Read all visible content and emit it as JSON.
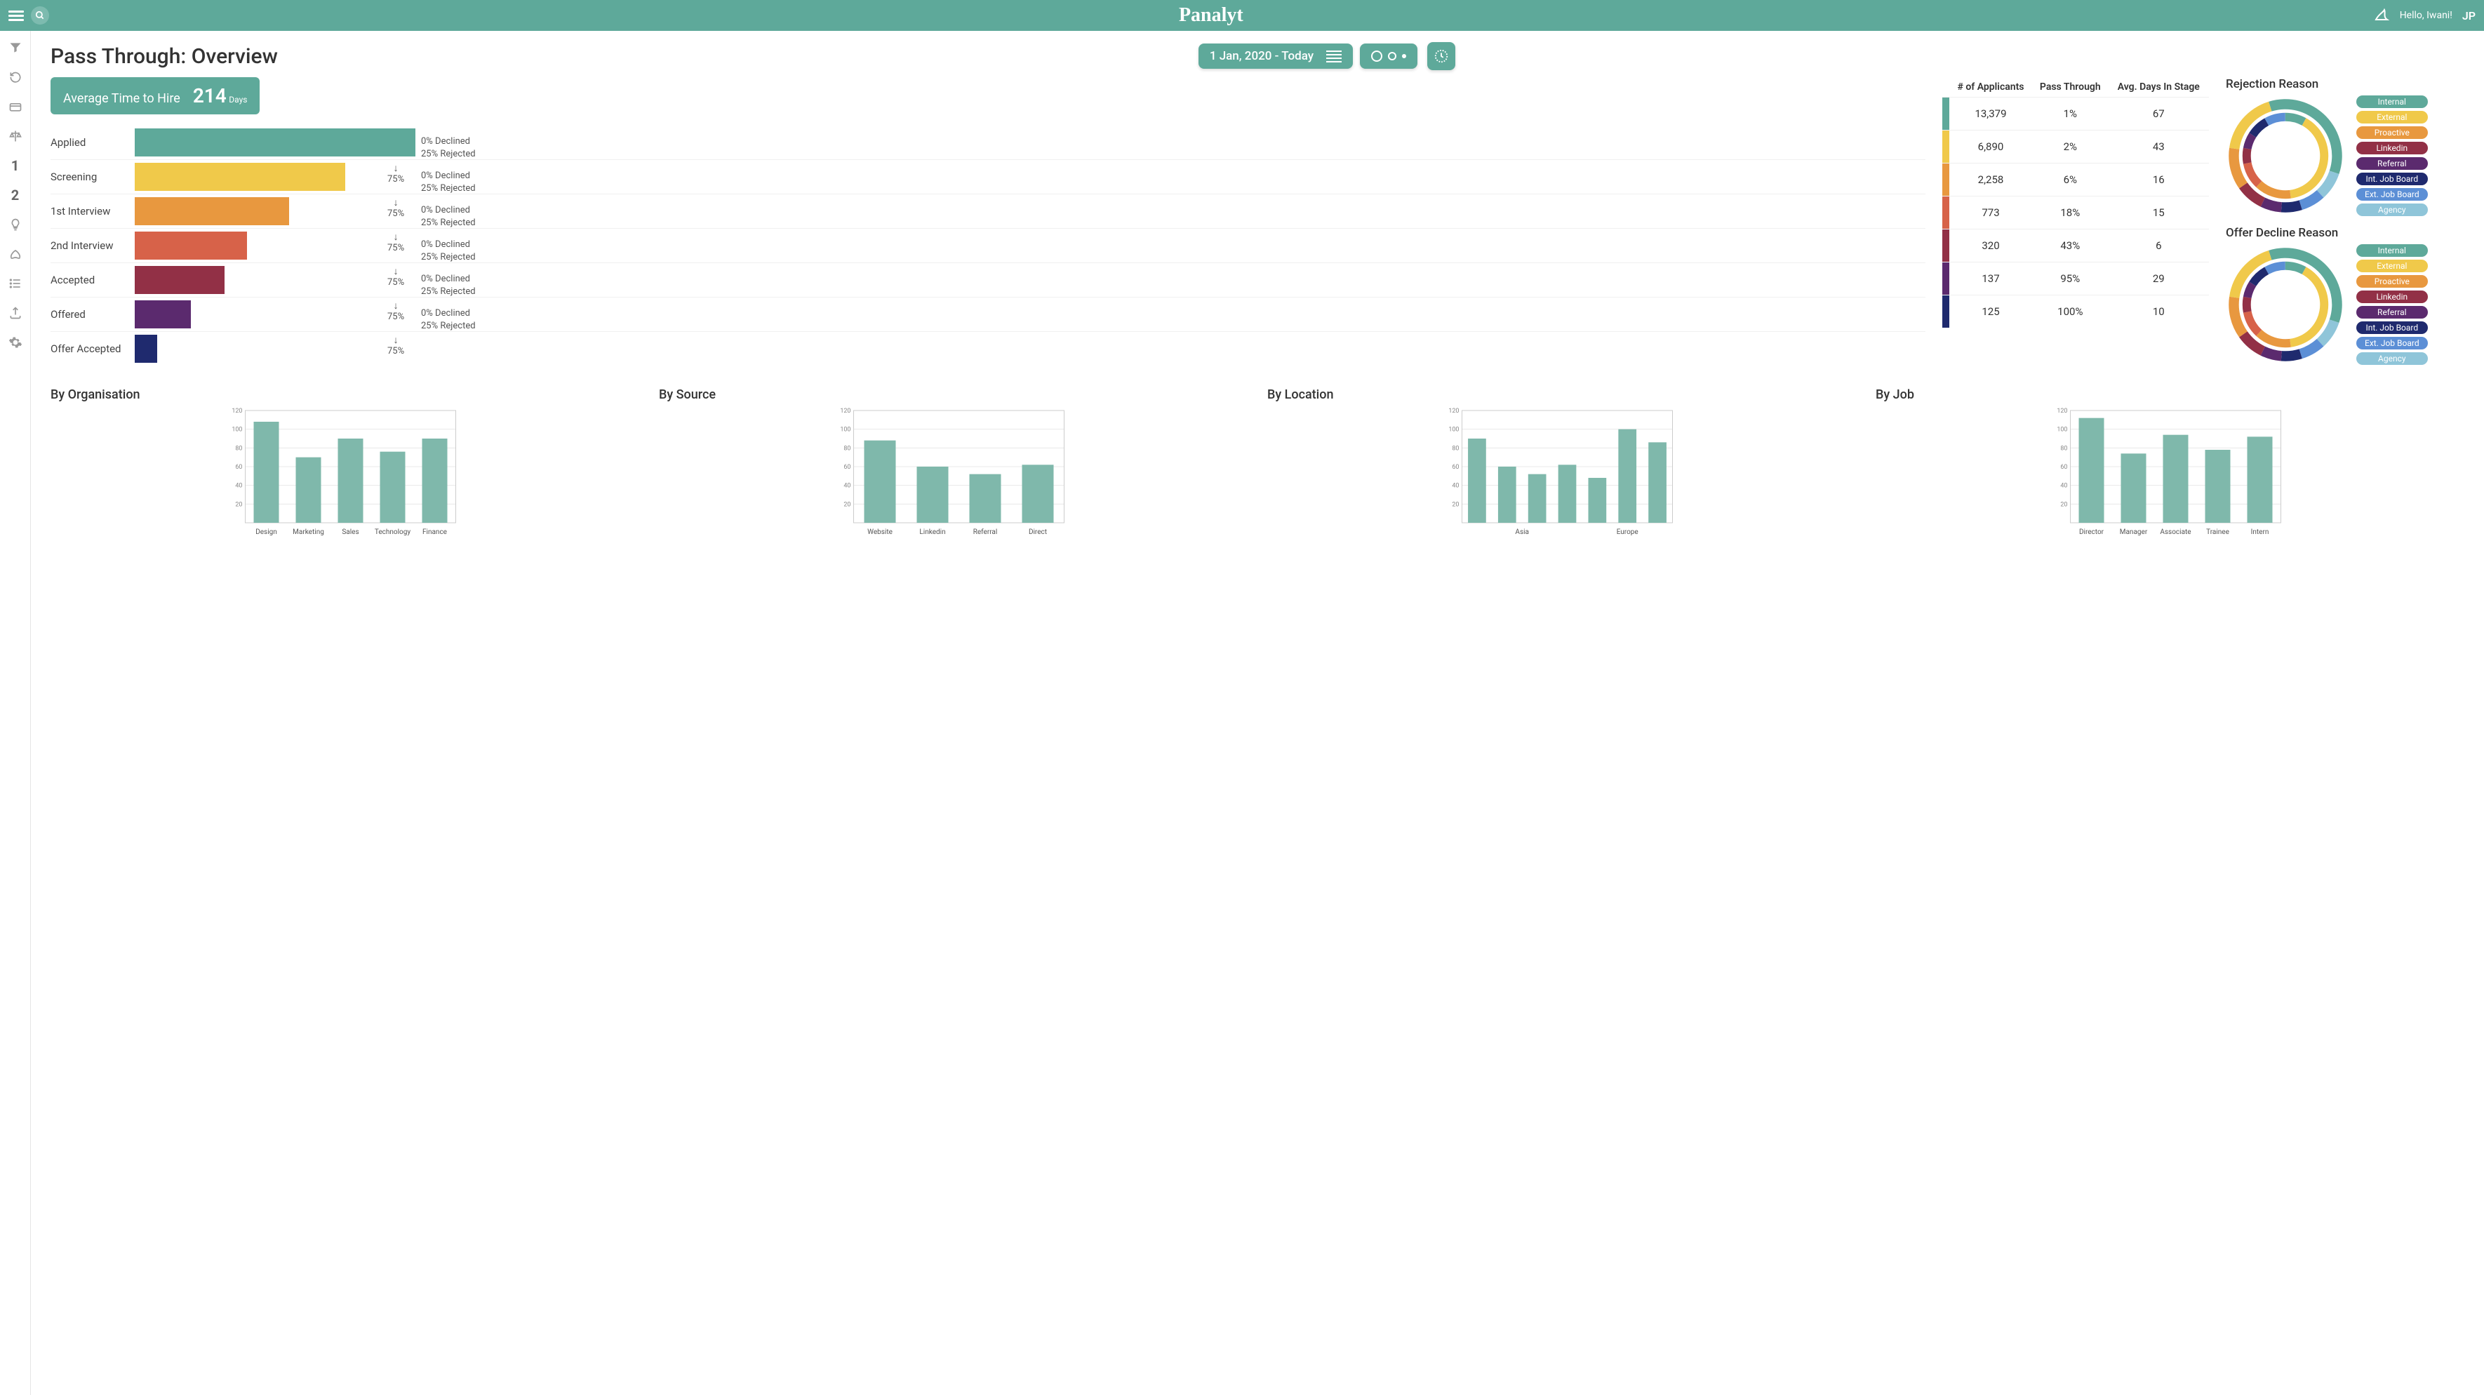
{
  "brand": "Panalyt",
  "greeting": "Hello, Iwani!",
  "user_initials": "JP",
  "page_title": "Pass Through: Overview",
  "date_range": "1 Jan, 2020 - Today",
  "sidebar_items": [
    "filter",
    "refresh",
    "card",
    "balance",
    "num1",
    "num2",
    "bulb",
    "rocket",
    "list",
    "upload",
    "gear"
  ],
  "metric": {
    "label": "Average Time to Hire",
    "value": "214",
    "unit": "Days"
  },
  "colors": {
    "accent": "#5ea99a",
    "stages": [
      "#5ea99a",
      "#f0c94a",
      "#e8983f",
      "#d76249",
      "#923046",
      "#5b2a6e",
      "#1f2a6e"
    ],
    "legend": [
      "#5ea99a",
      "#f0c94a",
      "#e8983f",
      "#923046",
      "#5b2a6e",
      "#1f2a6e",
      "#5c8fd6",
      "#8fc5d9"
    ]
  },
  "funnel": {
    "max_width_pct": 100,
    "stages": [
      {
        "label": "Applied",
        "width": 100,
        "pass": "75%",
        "declined": "0% Declined",
        "rejected": "25% Rejected"
      },
      {
        "label": "Screening",
        "width": 75,
        "pass": "75%",
        "declined": "0% Declined",
        "rejected": "25% Rejected"
      },
      {
        "label": "1st Interview",
        "width": 55,
        "pass": "75%",
        "declined": "0% Declined",
        "rejected": "25% Rejected"
      },
      {
        "label": "2nd Interview",
        "width": 40,
        "pass": "75%",
        "declined": "0% Declined",
        "rejected": "25% Rejected"
      },
      {
        "label": "Accepted",
        "width": 32,
        "pass": "75%",
        "declined": "0% Declined",
        "rejected": "25% Rejected"
      },
      {
        "label": "Offered",
        "width": 20,
        "pass": "75%",
        "declined": "0% Declined",
        "rejected": "25% Rejected"
      },
      {
        "label": "Offer Accepted",
        "width": 8,
        "pass": "",
        "declined": "",
        "rejected": ""
      }
    ]
  },
  "table": {
    "columns": [
      "# of Applicants",
      "Pass Through",
      "Avg. Days In Stage"
    ],
    "rows": [
      {
        "applicants": "13,379",
        "pass": "1%",
        "days": "67"
      },
      {
        "applicants": "6,890",
        "pass": "2%",
        "days": "43"
      },
      {
        "applicants": "2,258",
        "pass": "6%",
        "days": "16"
      },
      {
        "applicants": "773",
        "pass": "18%",
        "days": "15"
      },
      {
        "applicants": "320",
        "pass": "43%",
        "days": "6"
      },
      {
        "applicants": "137",
        "pass": "95%",
        "days": "29"
      },
      {
        "applicants": "125",
        "pass": "100%",
        "days": "10"
      }
    ]
  },
  "donuts": {
    "rejection": {
      "title": "Rejection Reason",
      "outer": [
        {
          "v": 35,
          "c": "#5ea99a"
        },
        {
          "v": 8,
          "c": "#8fc5d9"
        },
        {
          "v": 7,
          "c": "#5c8fd6"
        },
        {
          "v": 6,
          "c": "#1f2a6e"
        },
        {
          "v": 6,
          "c": "#5b2a6e"
        },
        {
          "v": 8,
          "c": "#923046"
        },
        {
          "v": 12,
          "c": "#e8983f"
        },
        {
          "v": 18,
          "c": "#f0c94a"
        }
      ],
      "inner": [
        {
          "v": 40,
          "c": "#f0c94a"
        },
        {
          "v": 14,
          "c": "#e8983f"
        },
        {
          "v": 10,
          "c": "#d76249"
        },
        {
          "v": 6,
          "c": "#923046"
        },
        {
          "v": 6,
          "c": "#5b2a6e"
        },
        {
          "v": 8,
          "c": "#1f2a6e"
        },
        {
          "v": 8,
          "c": "#5c8fd6"
        },
        {
          "v": 8,
          "c": "#5ea99a"
        }
      ]
    },
    "offer": {
      "title": "Offer Decline Reason",
      "outer": [
        {
          "v": 35,
          "c": "#5ea99a"
        },
        {
          "v": 8,
          "c": "#8fc5d9"
        },
        {
          "v": 7,
          "c": "#5c8fd6"
        },
        {
          "v": 6,
          "c": "#1f2a6e"
        },
        {
          "v": 6,
          "c": "#5b2a6e"
        },
        {
          "v": 8,
          "c": "#923046"
        },
        {
          "v": 12,
          "c": "#e8983f"
        },
        {
          "v": 18,
          "c": "#f0c94a"
        }
      ],
      "inner": [
        {
          "v": 40,
          "c": "#f0c94a"
        },
        {
          "v": 14,
          "c": "#e8983f"
        },
        {
          "v": 10,
          "c": "#d76249"
        },
        {
          "v": 6,
          "c": "#923046"
        },
        {
          "v": 6,
          "c": "#5b2a6e"
        },
        {
          "v": 8,
          "c": "#1f2a6e"
        },
        {
          "v": 8,
          "c": "#5c8fd6"
        },
        {
          "v": 8,
          "c": "#5ea99a"
        }
      ]
    },
    "legend_labels": [
      "Internal",
      "External",
      "Proactive",
      "Linkedin",
      "Referral",
      "Int. Job Board",
      "Ext. Job Board",
      "Agency"
    ]
  },
  "mini_charts": {
    "ylim": [
      0,
      120
    ],
    "yticks": [
      20,
      40,
      60,
      80,
      100,
      120
    ],
    "bar_color": "#7fb8ab",
    "charts": [
      {
        "title": "By Organisation",
        "categories": [
          "Design",
          "Marketing",
          "Sales",
          "Technology",
          "Finance"
        ],
        "values": [
          108,
          70,
          90,
          76,
          90
        ]
      },
      {
        "title": "By Source",
        "categories": [
          "Website",
          "Linkedin",
          "Referral",
          "Direct"
        ],
        "values": [
          88,
          60,
          52,
          62
        ]
      },
      {
        "title": "By Location",
        "categories": [
          "",
          "Asia",
          "",
          "",
          "",
          "Europe",
          ""
        ],
        "values": [
          90,
          60,
          52,
          62,
          48,
          100,
          86
        ],
        "cat_positions": [
          1.5,
          5
        ]
      },
      {
        "title": "By Job",
        "categories": [
          "Director",
          "Manager",
          "Associate",
          "Trainee",
          "Intern"
        ],
        "values": [
          112,
          74,
          94,
          78,
          92
        ]
      }
    ]
  }
}
